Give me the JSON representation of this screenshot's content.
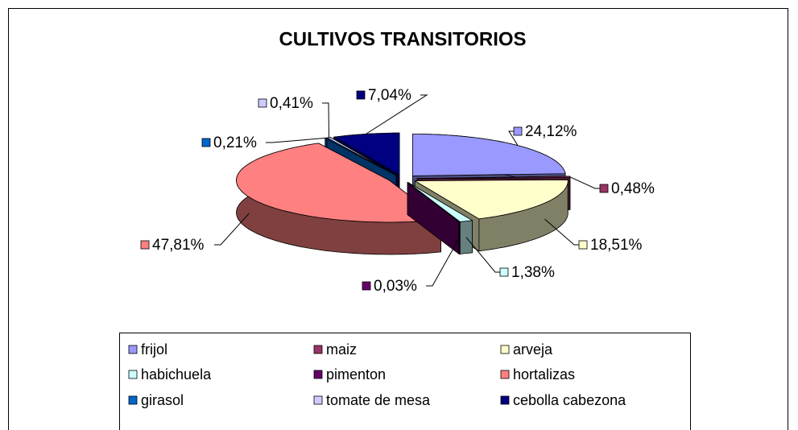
{
  "chart_data": {
    "type": "pie3d",
    "title": "CULTIVOS TRANSITORIOS",
    "categories": [
      "frijol",
      "maiz",
      "arveja",
      "habichuela",
      "pimenton",
      "hortalizas",
      "girasol",
      "tomate de mesa",
      "cebolla cabezona"
    ],
    "values": [
      24.12,
      0.48,
      18.51,
      1.38,
      0.03,
      47.81,
      0.21,
      0.41,
      7.04
    ],
    "value_labels": [
      "24,12%",
      "0,48%",
      "18,51%",
      "1,38%",
      "0,03%",
      "47,81%",
      "0,21%",
      "0,41%",
      "7,04%"
    ],
    "colors": [
      "#9999FF",
      "#993366",
      "#FFFFCC",
      "#CCFFFF",
      "#660066",
      "#FF8080",
      "#0066CC",
      "#CCCCFF",
      "#000080"
    ],
    "legend": "bottom"
  }
}
